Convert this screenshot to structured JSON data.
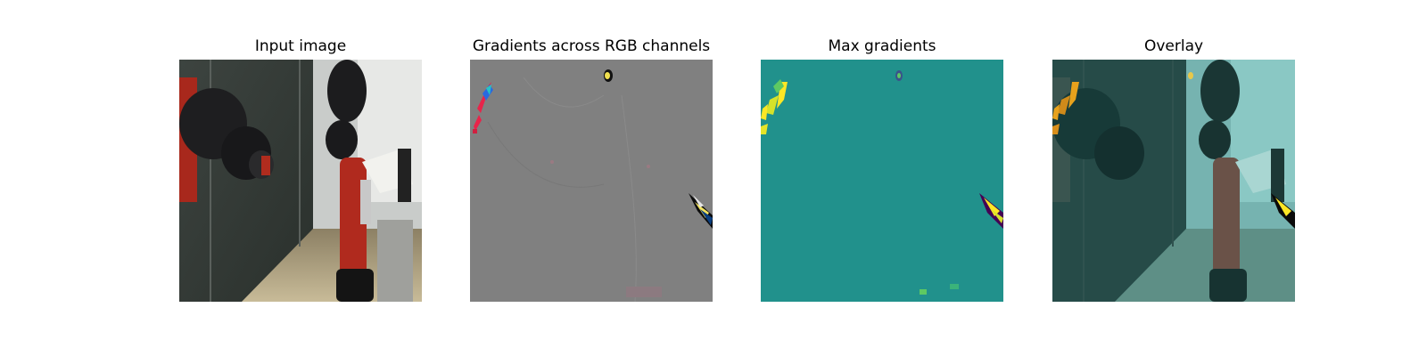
{
  "figure": {
    "panels": [
      {
        "title": "Input image"
      },
      {
        "title": "Gradients across RGB channels"
      },
      {
        "title": "Max gradients"
      },
      {
        "title": "Overlay"
      }
    ]
  },
  "colors": {
    "gradient_background": "#808080",
    "max_gradient_background": "#21918c",
    "highlight_yellow": "#fde725",
    "overlay_tint": "#2a8a88",
    "robot_red": "#b22a1e"
  }
}
